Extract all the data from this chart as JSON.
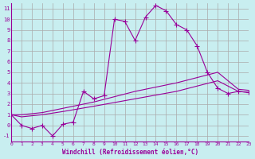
{
  "title": "",
  "xlabel": "Windchill (Refroidissement éolien,°C)",
  "ylabel": "",
  "background_color": "#c8eef0",
  "line_color": "#990099",
  "grid_color": "#aaaaaa",
  "xlim": [
    0,
    23
  ],
  "ylim": [
    -1.5,
    11.5
  ],
  "xtick_labels": [
    "0",
    "1",
    "2",
    "3",
    "4",
    "5",
    "6",
    "7",
    "8",
    "9",
    "10",
    "11",
    "12",
    "13",
    "14",
    "15",
    "16",
    "17",
    "18",
    "19",
    "20",
    "21",
    "22",
    "23"
  ],
  "ytick_labels": [
    "-1",
    "0",
    "1",
    "2",
    "3",
    "4",
    "5",
    "6",
    "7",
    "8",
    "9",
    "10",
    "11"
  ],
  "series_main": {
    "x": [
      0,
      1,
      2,
      3,
      4,
      5,
      6,
      7,
      8,
      9,
      10,
      11,
      12,
      13,
      14,
      15,
      16,
      17,
      18,
      19,
      20,
      21,
      22,
      23
    ],
    "y": [
      1,
      0,
      -0.3,
      0,
      -1,
      0.1,
      0.3,
      3.2,
      2.5,
      2.8,
      10,
      9.8,
      8,
      10.2,
      11.3,
      10.8,
      9.5,
      9,
      7.5,
      5,
      3.5,
      3,
      3.2,
      3.1
    ]
  },
  "series_lower": {
    "x": [
      0,
      1,
      2,
      3,
      5,
      8,
      12,
      16,
      20,
      22,
      23
    ],
    "y": [
      1,
      0.8,
      0.9,
      1.0,
      1.3,
      1.8,
      2.5,
      3.2,
      4.2,
      3.2,
      3.1
    ]
  },
  "series_upper": {
    "x": [
      0,
      1,
      2,
      3,
      5,
      8,
      12,
      16,
      20,
      22,
      23
    ],
    "y": [
      1,
      1.0,
      1.1,
      1.2,
      1.6,
      2.2,
      3.2,
      4.0,
      5.0,
      3.4,
      3.3
    ]
  }
}
